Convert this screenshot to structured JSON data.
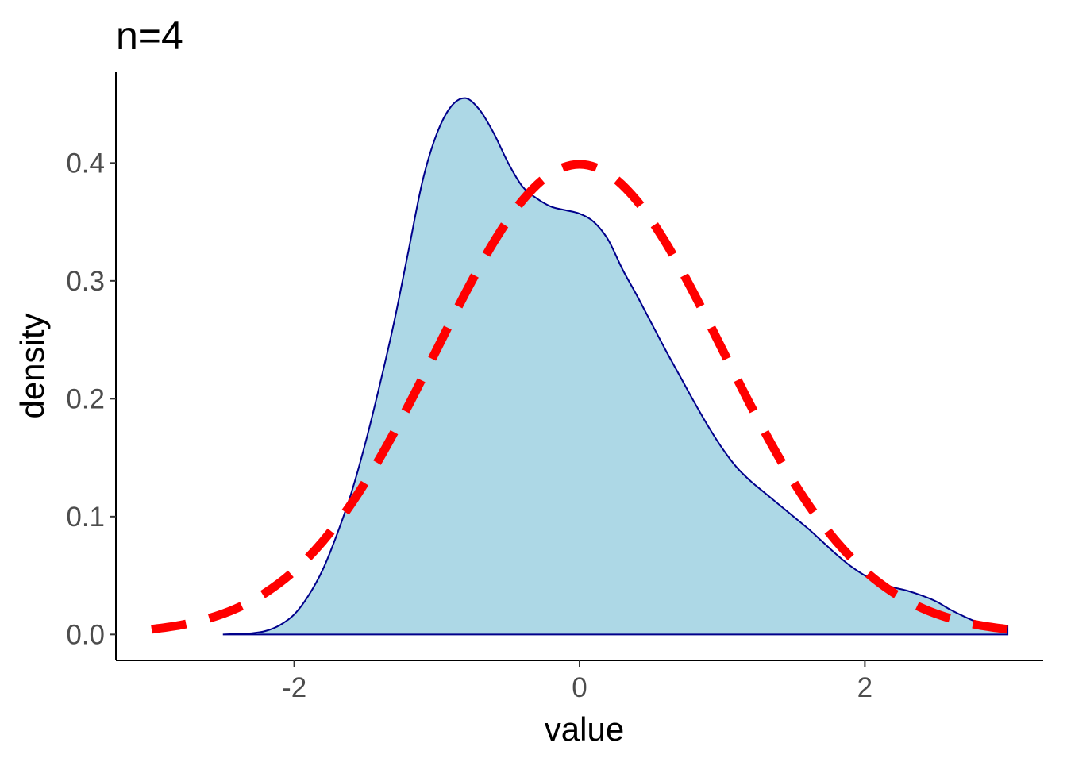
{
  "chart_data": {
    "type": "area",
    "title": "n=4",
    "xlabel": "value",
    "ylabel": "density",
    "xlim": [
      -3.25,
      3.25
    ],
    "ylim": [
      -0.022,
      0.477
    ],
    "x_ticks": [
      -2,
      0,
      2
    ],
    "x_tick_labels": [
      "-2",
      "0",
      "2"
    ],
    "y_ticks": [
      0.0,
      0.1,
      0.2,
      0.3,
      0.4
    ],
    "y_tick_labels": [
      "0.0",
      "0.1",
      "0.2",
      "0.3",
      "0.4"
    ],
    "grid": false,
    "legend": "none",
    "series": [
      {
        "role": "sample-density",
        "style": "filled area",
        "fill": "#add8e6",
        "stroke": "#00008b",
        "x": [
          -2.5,
          -2.4,
          -2.3,
          -2.2,
          -2.1,
          -2.0,
          -1.9,
          -1.8,
          -1.7,
          -1.6,
          -1.5,
          -1.4,
          -1.3,
          -1.2,
          -1.1,
          -1.0,
          -0.9,
          -0.8,
          -0.7,
          -0.6,
          -0.5,
          -0.4,
          -0.3,
          -0.2,
          -0.1,
          0.0,
          0.1,
          0.2,
          0.3,
          0.4,
          0.5,
          0.6,
          0.7,
          0.8,
          0.9,
          1.0,
          1.1,
          1.2,
          1.3,
          1.4,
          1.5,
          1.6,
          1.7,
          1.8,
          1.9,
          2.0,
          2.1,
          2.2,
          2.3,
          2.4,
          2.5,
          2.6,
          2.7,
          2.8,
          2.9,
          3.0
        ],
        "y": [
          0.0,
          0.0005,
          0.001,
          0.003,
          0.008,
          0.017,
          0.033,
          0.055,
          0.085,
          0.12,
          0.163,
          0.212,
          0.265,
          0.325,
          0.385,
          0.425,
          0.448,
          0.455,
          0.445,
          0.425,
          0.4,
          0.38,
          0.37,
          0.363,
          0.36,
          0.357,
          0.35,
          0.335,
          0.31,
          0.288,
          0.265,
          0.242,
          0.22,
          0.198,
          0.177,
          0.158,
          0.142,
          0.13,
          0.12,
          0.11,
          0.1,
          0.09,
          0.079,
          0.068,
          0.058,
          0.05,
          0.044,
          0.04,
          0.037,
          0.033,
          0.028,
          0.021,
          0.015,
          0.01,
          0.008,
          0.007
        ]
      },
      {
        "role": "reference-normal-density",
        "style": "dashed line",
        "stroke": "#ff0000",
        "x": [
          -3.0,
          -2.8,
          -2.6,
          -2.4,
          -2.2,
          -2.0,
          -1.8,
          -1.6,
          -1.4,
          -1.2,
          -1.0,
          -0.8,
          -0.6,
          -0.4,
          -0.2,
          0.0,
          0.2,
          0.4,
          0.6,
          0.8,
          1.0,
          1.2,
          1.4,
          1.6,
          1.8,
          2.0,
          2.2,
          2.4,
          2.6,
          2.8,
          3.0
        ],
        "y": [
          0.0044,
          0.0079,
          0.0136,
          0.0224,
          0.0355,
          0.054,
          0.079,
          0.1109,
          0.1497,
          0.1942,
          0.242,
          0.2897,
          0.3332,
          0.3683,
          0.391,
          0.3989,
          0.391,
          0.3683,
          0.3332,
          0.2897,
          0.242,
          0.1942,
          0.1497,
          0.1109,
          0.079,
          0.054,
          0.0355,
          0.0224,
          0.0136,
          0.0079,
          0.0044
        ]
      }
    ]
  }
}
